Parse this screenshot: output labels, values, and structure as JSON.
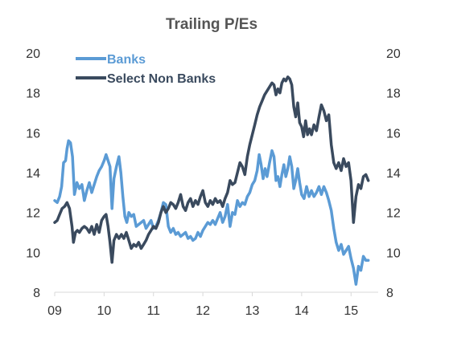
{
  "chart_data": {
    "type": "line",
    "title": "Trailing P/Es",
    "xlabel": "",
    "ylabel": "",
    "x_ticks": [
      "09",
      "10",
      "11",
      "12",
      "13",
      "14",
      "15"
    ],
    "x_range": [
      2009.0,
      2015.55
    ],
    "ylim": [
      8,
      20
    ],
    "y_ticks": [
      "8",
      "10",
      "12",
      "14",
      "16",
      "18",
      "20"
    ],
    "y_ticks_right": [
      "8",
      "10",
      "12",
      "14",
      "16",
      "18",
      "20"
    ],
    "grid": false,
    "legend_position": "top-left",
    "series": [
      {
        "name": "Banks",
        "color": "#5b9bd5",
        "points": [
          [
            2009.0,
            12.6
          ],
          [
            2009.05,
            12.5
          ],
          [
            2009.1,
            12.8
          ],
          [
            2009.14,
            13.3
          ],
          [
            2009.18,
            14.5
          ],
          [
            2009.22,
            14.6
          ],
          [
            2009.25,
            15.2
          ],
          [
            2009.28,
            15.6
          ],
          [
            2009.32,
            15.5
          ],
          [
            2009.36,
            14.8
          ],
          [
            2009.4,
            12.9
          ],
          [
            2009.45,
            13.5
          ],
          [
            2009.5,
            13.2
          ],
          [
            2009.55,
            13.4
          ],
          [
            2009.6,
            12.6
          ],
          [
            2009.65,
            13.1
          ],
          [
            2009.7,
            13.5
          ],
          [
            2009.75,
            13.0
          ],
          [
            2009.8,
            13.4
          ],
          [
            2009.85,
            13.8
          ],
          [
            2009.9,
            14.1
          ],
          [
            2009.95,
            14.3
          ],
          [
            2010.0,
            14.6
          ],
          [
            2010.04,
            14.9
          ],
          [
            2010.08,
            14.6
          ],
          [
            2010.12,
            14.3
          ],
          [
            2010.16,
            12.2
          ],
          [
            2010.2,
            13.7
          ],
          [
            2010.25,
            14.3
          ],
          [
            2010.3,
            14.8
          ],
          [
            2010.34,
            14.0
          ],
          [
            2010.38,
            12.8
          ],
          [
            2010.42,
            11.8
          ],
          [
            2010.46,
            11.5
          ],
          [
            2010.5,
            12.0
          ],
          [
            2010.55,
            11.8
          ],
          [
            2010.6,
            11.9
          ],
          [
            2010.65,
            11.3
          ],
          [
            2010.7,
            11.4
          ],
          [
            2010.75,
            11.5
          ],
          [
            2010.8,
            11.6
          ],
          [
            2010.85,
            11.2
          ],
          [
            2010.9,
            11.4
          ],
          [
            2010.95,
            11.6
          ],
          [
            2011.0,
            11.2
          ],
          [
            2011.05,
            11.3
          ],
          [
            2011.1,
            11.6
          ],
          [
            2011.15,
            12.0
          ],
          [
            2011.2,
            12.5
          ],
          [
            2011.25,
            12.4
          ],
          [
            2011.3,
            11.3
          ],
          [
            2011.35,
            11.0
          ],
          [
            2011.4,
            11.2
          ],
          [
            2011.45,
            10.9
          ],
          [
            2011.5,
            11.0
          ],
          [
            2011.55,
            10.8
          ],
          [
            2011.6,
            10.9
          ],
          [
            2011.65,
            11.0
          ],
          [
            2011.7,
            10.7
          ],
          [
            2011.75,
            10.8
          ],
          [
            2011.8,
            10.6
          ],
          [
            2011.85,
            10.7
          ],
          [
            2011.9,
            11.0
          ],
          [
            2011.95,
            10.8
          ],
          [
            2012.0,
            11.1
          ],
          [
            2012.05,
            11.3
          ],
          [
            2012.1,
            11.5
          ],
          [
            2012.15,
            11.4
          ],
          [
            2012.2,
            11.6
          ],
          [
            2012.25,
            11.4
          ],
          [
            2012.3,
            11.7
          ],
          [
            2012.35,
            12.0
          ],
          [
            2012.4,
            11.5
          ],
          [
            2012.45,
            11.8
          ],
          [
            2012.5,
            12.4
          ],
          [
            2012.55,
            11.3
          ],
          [
            2012.6,
            12.0
          ],
          [
            2012.65,
            11.9
          ],
          [
            2012.7,
            12.6
          ],
          [
            2012.75,
            12.3
          ],
          [
            2012.8,
            12.5
          ],
          [
            2012.85,
            12.4
          ],
          [
            2012.9,
            12.8
          ],
          [
            2012.95,
            13.0
          ],
          [
            2013.0,
            13.4
          ],
          [
            2013.05,
            13.6
          ],
          [
            2013.1,
            14.1
          ],
          [
            2013.14,
            14.9
          ],
          [
            2013.18,
            14.4
          ],
          [
            2013.22,
            13.7
          ],
          [
            2013.26,
            14.2
          ],
          [
            2013.3,
            13.8
          ],
          [
            2013.35,
            14.5
          ],
          [
            2013.4,
            15.1
          ],
          [
            2013.44,
            14.8
          ],
          [
            2013.48,
            13.6
          ],
          [
            2013.52,
            13.8
          ],
          [
            2013.56,
            13.3
          ],
          [
            2013.6,
            13.9
          ],
          [
            2013.64,
            14.4
          ],
          [
            2013.68,
            13.8
          ],
          [
            2013.72,
            14.2
          ],
          [
            2013.76,
            14.8
          ],
          [
            2013.8,
            14.3
          ],
          [
            2013.84,
            13.2
          ],
          [
            2013.88,
            13.6
          ],
          [
            2013.92,
            14.2
          ],
          [
            2013.96,
            13.5
          ],
          [
            2014.0,
            12.9
          ],
          [
            2014.05,
            12.7
          ],
          [
            2014.1,
            13.3
          ],
          [
            2014.15,
            12.8
          ],
          [
            2014.2,
            13.1
          ],
          [
            2014.25,
            12.8
          ],
          [
            2014.3,
            13.0
          ],
          [
            2014.35,
            13.3
          ],
          [
            2014.4,
            12.9
          ],
          [
            2014.45,
            13.3
          ],
          [
            2014.5,
            13.0
          ],
          [
            2014.55,
            12.6
          ],
          [
            2014.6,
            12.1
          ],
          [
            2014.65,
            11.2
          ],
          [
            2014.7,
            10.5
          ],
          [
            2014.75,
            10.1
          ],
          [
            2014.8,
            10.4
          ],
          [
            2014.85,
            9.9
          ],
          [
            2014.9,
            10.1
          ],
          [
            2014.95,
            10.3
          ],
          [
            2015.0,
            9.7
          ],
          [
            2015.05,
            9.2
          ],
          [
            2015.1,
            8.4
          ],
          [
            2015.15,
            9.3
          ],
          [
            2015.2,
            9.1
          ],
          [
            2015.25,
            9.8
          ],
          [
            2015.3,
            9.6
          ],
          [
            2015.35,
            9.6
          ]
        ]
      },
      {
        "name": "Select Non Banks",
        "color": "#3a4a5e",
        "points": [
          [
            2009.0,
            11.5
          ],
          [
            2009.05,
            11.6
          ],
          [
            2009.1,
            11.9
          ],
          [
            2009.15,
            12.2
          ],
          [
            2009.2,
            12.3
          ],
          [
            2009.25,
            12.5
          ],
          [
            2009.3,
            12.2
          ],
          [
            2009.35,
            11.3
          ],
          [
            2009.38,
            10.5
          ],
          [
            2009.42,
            11.0
          ],
          [
            2009.46,
            11.1
          ],
          [
            2009.5,
            11.0
          ],
          [
            2009.55,
            11.2
          ],
          [
            2009.6,
            11.3
          ],
          [
            2009.65,
            11.2
          ],
          [
            2009.7,
            11.0
          ],
          [
            2009.75,
            11.3
          ],
          [
            2009.8,
            10.9
          ],
          [
            2009.85,
            11.4
          ],
          [
            2009.9,
            11.0
          ],
          [
            2009.95,
            11.6
          ],
          [
            2010.0,
            11.8
          ],
          [
            2010.04,
            11.9
          ],
          [
            2010.08,
            11.3
          ],
          [
            2010.12,
            10.5
          ],
          [
            2010.16,
            9.5
          ],
          [
            2010.2,
            10.6
          ],
          [
            2010.25,
            10.9
          ],
          [
            2010.3,
            10.7
          ],
          [
            2010.35,
            10.9
          ],
          [
            2010.4,
            10.7
          ],
          [
            2010.45,
            11.0
          ],
          [
            2010.5,
            10.6
          ],
          [
            2010.55,
            10.2
          ],
          [
            2010.6,
            10.4
          ],
          [
            2010.65,
            10.3
          ],
          [
            2010.7,
            10.5
          ],
          [
            2010.75,
            10.2
          ],
          [
            2010.8,
            10.4
          ],
          [
            2010.85,
            10.6
          ],
          [
            2010.9,
            10.9
          ],
          [
            2010.95,
            11.1
          ],
          [
            2011.0,
            11.3
          ],
          [
            2011.05,
            11.2
          ],
          [
            2011.1,
            11.5
          ],
          [
            2011.15,
            12.0
          ],
          [
            2011.2,
            12.3
          ],
          [
            2011.25,
            12.0
          ],
          [
            2011.3,
            12.2
          ],
          [
            2011.35,
            12.5
          ],
          [
            2011.4,
            12.4
          ],
          [
            2011.45,
            12.2
          ],
          [
            2011.5,
            12.5
          ],
          [
            2011.55,
            12.9
          ],
          [
            2011.6,
            12.3
          ],
          [
            2011.65,
            12.1
          ],
          [
            2011.7,
            12.5
          ],
          [
            2011.75,
            12.7
          ],
          [
            2011.8,
            12.3
          ],
          [
            2011.85,
            12.6
          ],
          [
            2011.9,
            12.4
          ],
          [
            2011.95,
            12.8
          ],
          [
            2012.0,
            13.1
          ],
          [
            2012.05,
            12.5
          ],
          [
            2012.1,
            12.3
          ],
          [
            2012.15,
            12.6
          ],
          [
            2012.2,
            12.4
          ],
          [
            2012.25,
            12.7
          ],
          [
            2012.3,
            12.5
          ],
          [
            2012.35,
            12.6
          ],
          [
            2012.4,
            12.3
          ],
          [
            2012.45,
            12.7
          ],
          [
            2012.5,
            13.0
          ],
          [
            2012.55,
            13.6
          ],
          [
            2012.6,
            13.4
          ],
          [
            2012.65,
            13.5
          ],
          [
            2012.7,
            14.0
          ],
          [
            2012.75,
            14.5
          ],
          [
            2012.8,
            14.3
          ],
          [
            2012.85,
            13.9
          ],
          [
            2012.9,
            14.8
          ],
          [
            2012.95,
            15.4
          ],
          [
            2013.0,
            15.9
          ],
          [
            2013.05,
            16.4
          ],
          [
            2013.1,
            16.9
          ],
          [
            2013.15,
            17.3
          ],
          [
            2013.2,
            17.6
          ],
          [
            2013.25,
            17.9
          ],
          [
            2013.3,
            18.1
          ],
          [
            2013.35,
            18.3
          ],
          [
            2013.4,
            18.5
          ],
          [
            2013.44,
            18.4
          ],
          [
            2013.48,
            17.9
          ],
          [
            2013.52,
            18.2
          ],
          [
            2013.56,
            18.0
          ],
          [
            2013.6,
            18.5
          ],
          [
            2013.64,
            18.7
          ],
          [
            2013.68,
            18.6
          ],
          [
            2013.72,
            18.8
          ],
          [
            2013.76,
            18.7
          ],
          [
            2013.8,
            18.4
          ],
          [
            2013.84,
            17.3
          ],
          [
            2013.88,
            16.8
          ],
          [
            2013.92,
            17.5
          ],
          [
            2013.96,
            16.5
          ],
          [
            2014.0,
            16.3
          ],
          [
            2014.04,
            15.8
          ],
          [
            2014.08,
            16.6
          ],
          [
            2014.12,
            15.9
          ],
          [
            2014.16,
            16.2
          ],
          [
            2014.2,
            15.9
          ],
          [
            2014.25,
            16.4
          ],
          [
            2014.3,
            16.1
          ],
          [
            2014.35,
            16.8
          ],
          [
            2014.4,
            17.4
          ],
          [
            2014.45,
            17.1
          ],
          [
            2014.5,
            16.6
          ],
          [
            2014.55,
            16.9
          ],
          [
            2014.6,
            15.4
          ],
          [
            2014.65,
            14.5
          ],
          [
            2014.7,
            14.2
          ],
          [
            2014.75,
            14.5
          ],
          [
            2014.8,
            14.1
          ],
          [
            2014.85,
            14.7
          ],
          [
            2014.9,
            14.3
          ],
          [
            2014.95,
            14.5
          ],
          [
            2015.0,
            13.6
          ],
          [
            2015.05,
            11.5
          ],
          [
            2015.1,
            12.8
          ],
          [
            2015.15,
            13.4
          ],
          [
            2015.2,
            13.2
          ],
          [
            2015.25,
            13.8
          ],
          [
            2015.3,
            13.9
          ],
          [
            2015.35,
            13.6
          ]
        ]
      }
    ]
  }
}
